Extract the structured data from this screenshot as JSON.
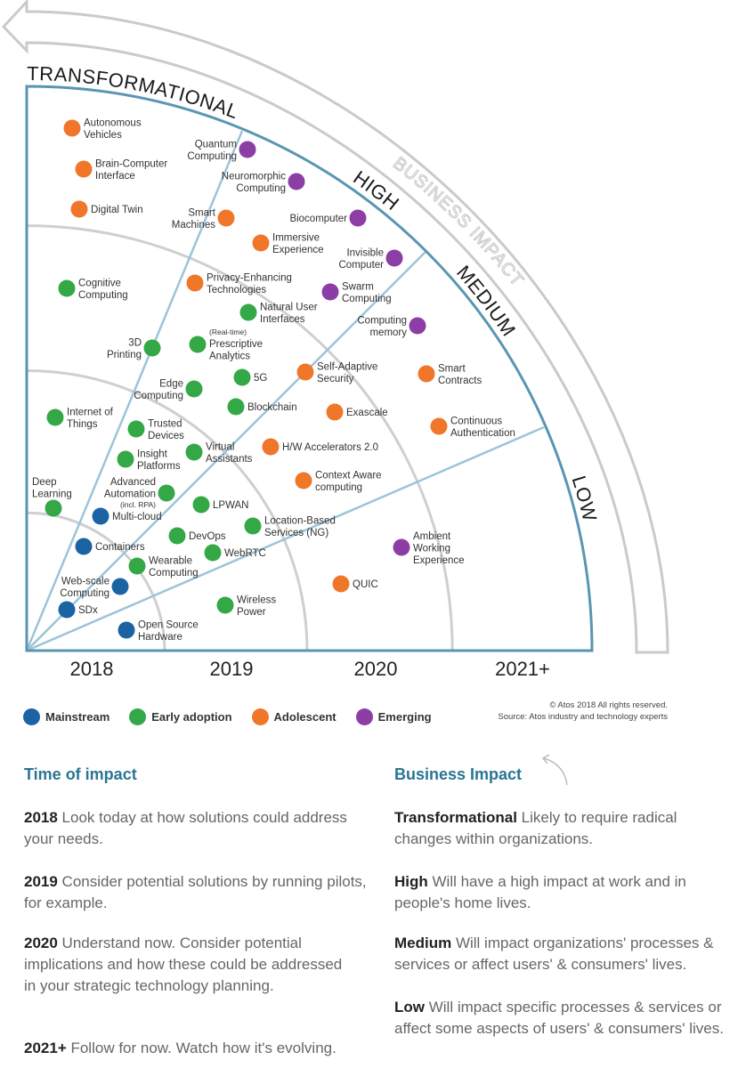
{
  "colors": {
    "mainstream": "#1b63a3",
    "early_adoption": "#34a846",
    "adolescent": "#f0762a",
    "emerging": "#8c3ea6",
    "frame": "#5a95b2",
    "sector_lines": "#9cc4d8",
    "year_arcs": "#cfcfcf",
    "heading": "#2a7593"
  },
  "radar": {
    "axis_label": "BUSINESS IMPACT",
    "zones": [
      "TRANSFORMATIONAL",
      "HIGH",
      "MEDIUM",
      "LOW"
    ],
    "years": [
      "2018",
      "2019",
      "2020",
      "2021+"
    ],
    "items": [
      {
        "name": "Autonomous Vehicles",
        "stage": "adolescent",
        "label": [
          "Autonomous",
          "Vehicles"
        ]
      },
      {
        "name": "Brain-Computer Interface",
        "stage": "adolescent",
        "label": [
          "Brain-Computer",
          "Interface"
        ]
      },
      {
        "name": "Digital Twin",
        "stage": "adolescent",
        "label": [
          "Digital Twin"
        ]
      },
      {
        "name": "Smart Machines",
        "stage": "adolescent",
        "label": [
          "Smart",
          "Machines"
        ]
      },
      {
        "name": "Immersive Experience",
        "stage": "adolescent",
        "label": [
          "Immersive",
          "Experience"
        ]
      },
      {
        "name": "Privacy-Enhancing Technologies",
        "stage": "adolescent",
        "label": [
          "Privacy-Enhancing",
          "Technologies"
        ]
      },
      {
        "name": "Self-Adaptive Security",
        "stage": "adolescent",
        "label": [
          "Self-Adaptive",
          "Security"
        ]
      },
      {
        "name": "Smart Contracts",
        "stage": "adolescent",
        "label": [
          "Smart",
          "Contracts"
        ]
      },
      {
        "name": "Exascale",
        "stage": "adolescent",
        "label": [
          "Exascale"
        ]
      },
      {
        "name": "Continuous Authentication",
        "stage": "adolescent",
        "label": [
          "Continuous",
          "Authentication"
        ]
      },
      {
        "name": "H/W Accelerators 2.0",
        "stage": "adolescent",
        "label": [
          "H/W Accelerators 2.0"
        ]
      },
      {
        "name": "Context Aware computing",
        "stage": "adolescent",
        "label": [
          "Context Aware",
          "computing"
        ]
      },
      {
        "name": "QUIC",
        "stage": "adolescent",
        "label": [
          "QUIC"
        ]
      },
      {
        "name": "Quantum Computing",
        "stage": "emerging",
        "label": [
          "Quantum",
          "Computing"
        ]
      },
      {
        "name": "Neuromorphic Computing",
        "stage": "emerging",
        "label": [
          "Neuromorphic",
          "Computing"
        ]
      },
      {
        "name": "Biocomputer",
        "stage": "emerging",
        "label": [
          "Biocomputer"
        ]
      },
      {
        "name": "Invisible Computer",
        "stage": "emerging",
        "label": [
          "Invisible",
          "Computer"
        ]
      },
      {
        "name": "Swarm Computing",
        "stage": "emerging",
        "label": [
          "Swarm",
          "Computing"
        ]
      },
      {
        "name": "Computing memory",
        "stage": "emerging",
        "label": [
          "Computing",
          "memory"
        ]
      },
      {
        "name": "Ambient Working Experience",
        "stage": "emerging",
        "label": [
          "Ambient",
          "Working",
          "Experience"
        ]
      },
      {
        "name": "Cognitive Computing",
        "stage": "early_adoption",
        "label": [
          "Cognitive",
          "Computing"
        ]
      },
      {
        "name": "Natural User Interfaces",
        "stage": "early_adoption",
        "label": [
          "Natural User",
          "Interfaces"
        ]
      },
      {
        "name": "3D Printing",
        "stage": "early_adoption",
        "label": [
          "3D",
          "Printing"
        ]
      },
      {
        "name": "Prescriptive Analytics",
        "stage": "early_adoption",
        "note": "(Real-time)",
        "label": [
          "Prescriptive",
          "Analytics"
        ]
      },
      {
        "name": "Edge Computing",
        "stage": "early_adoption",
        "label": [
          "Edge",
          "Computing"
        ]
      },
      {
        "name": "5G",
        "stage": "early_adoption",
        "label": [
          "5G"
        ]
      },
      {
        "name": "Blockchain",
        "stage": "early_adoption",
        "label": [
          "Blockchain"
        ]
      },
      {
        "name": "Internet of Things",
        "stage": "early_adoption",
        "label": [
          "Internet of",
          "Things"
        ]
      },
      {
        "name": "Trusted Devices",
        "stage": "early_adoption",
        "label": [
          "Trusted",
          "Devices"
        ]
      },
      {
        "name": "Virtual Assistants",
        "stage": "early_adoption",
        "label": [
          "Virtual",
          "Assistants"
        ]
      },
      {
        "name": "Insight Platforms",
        "stage": "early_adoption",
        "label": [
          "Insight",
          "Platforms"
        ]
      },
      {
        "name": "Advanced Automation",
        "stage": "early_adoption",
        "label": [
          "Advanced",
          "Automation"
        ],
        "note_after": "(incl. RPA)"
      },
      {
        "name": "Deep Learning",
        "stage": "early_adoption",
        "label": [
          "Deep",
          "Learning"
        ]
      },
      {
        "name": "LPWAN",
        "stage": "early_adoption",
        "label": [
          "LPWAN"
        ]
      },
      {
        "name": "Location-Based Services (NG)",
        "stage": "early_adoption",
        "label": [
          "Location-Based",
          "Services (NG)"
        ]
      },
      {
        "name": "DevOps",
        "stage": "early_adoption",
        "label": [
          "DevOps"
        ]
      },
      {
        "name": "WebRTC",
        "stage": "early_adoption",
        "label": [
          "WebRTC"
        ]
      },
      {
        "name": "Wearable Computing",
        "stage": "early_adoption",
        "label": [
          "Wearable",
          "Computing"
        ]
      },
      {
        "name": "Wireless Power",
        "stage": "early_adoption",
        "label": [
          "Wireless",
          "Power"
        ]
      },
      {
        "name": "Multi-cloud",
        "stage": "mainstream",
        "label": [
          "Multi-cloud"
        ]
      },
      {
        "name": "Containers",
        "stage": "mainstream",
        "label": [
          "Containers"
        ]
      },
      {
        "name": "Web-scale Computing",
        "stage": "mainstream",
        "label": [
          "Web-scale",
          "Computing"
        ]
      },
      {
        "name": "SDx",
        "stage": "mainstream",
        "label": [
          "SDx"
        ]
      },
      {
        "name": "Open Source Hardware",
        "stage": "mainstream",
        "label": [
          "Open Source",
          "Hardware"
        ]
      }
    ]
  },
  "legend": [
    {
      "key": "mainstream",
      "label": "Mainstream"
    },
    {
      "key": "early_adoption",
      "label": "Early adoption"
    },
    {
      "key": "adolescent",
      "label": "Adolescent"
    },
    {
      "key": "emerging",
      "label": "Emerging"
    }
  ],
  "credits": {
    "copyright": "© Atos 2018 All rights reserved.",
    "source": "Source: Atos industry and technology experts"
  },
  "time_of_impact": {
    "title": "Time of impact",
    "items": [
      {
        "key": "2018",
        "text": " Look today at how solutions could address your needs."
      },
      {
        "key": "2019",
        "text": " Consider potential solutions by running pilots, for example."
      },
      {
        "key": "2020",
        "text": " Understand now. Consider potential implications and how these could be addressed in your strategic technology planning."
      },
      {
        "key": "2021+",
        "text": " Follow for now. Watch how it's evolving."
      }
    ]
  },
  "business_impact": {
    "title": "Business Impact",
    "items": [
      {
        "key": "Transformational",
        "text": " Likely to require radical changes within organizations."
      },
      {
        "key": "High",
        "text": " Will have a high impact at work and in people's home lives."
      },
      {
        "key": "Medium",
        "text": " Will impact organizations' processes & services or affect users' & consumers' lives."
      },
      {
        "key": "Low",
        "text": " Will impact specific processes & services or affect some aspects of users' & consumers' lives."
      }
    ]
  }
}
